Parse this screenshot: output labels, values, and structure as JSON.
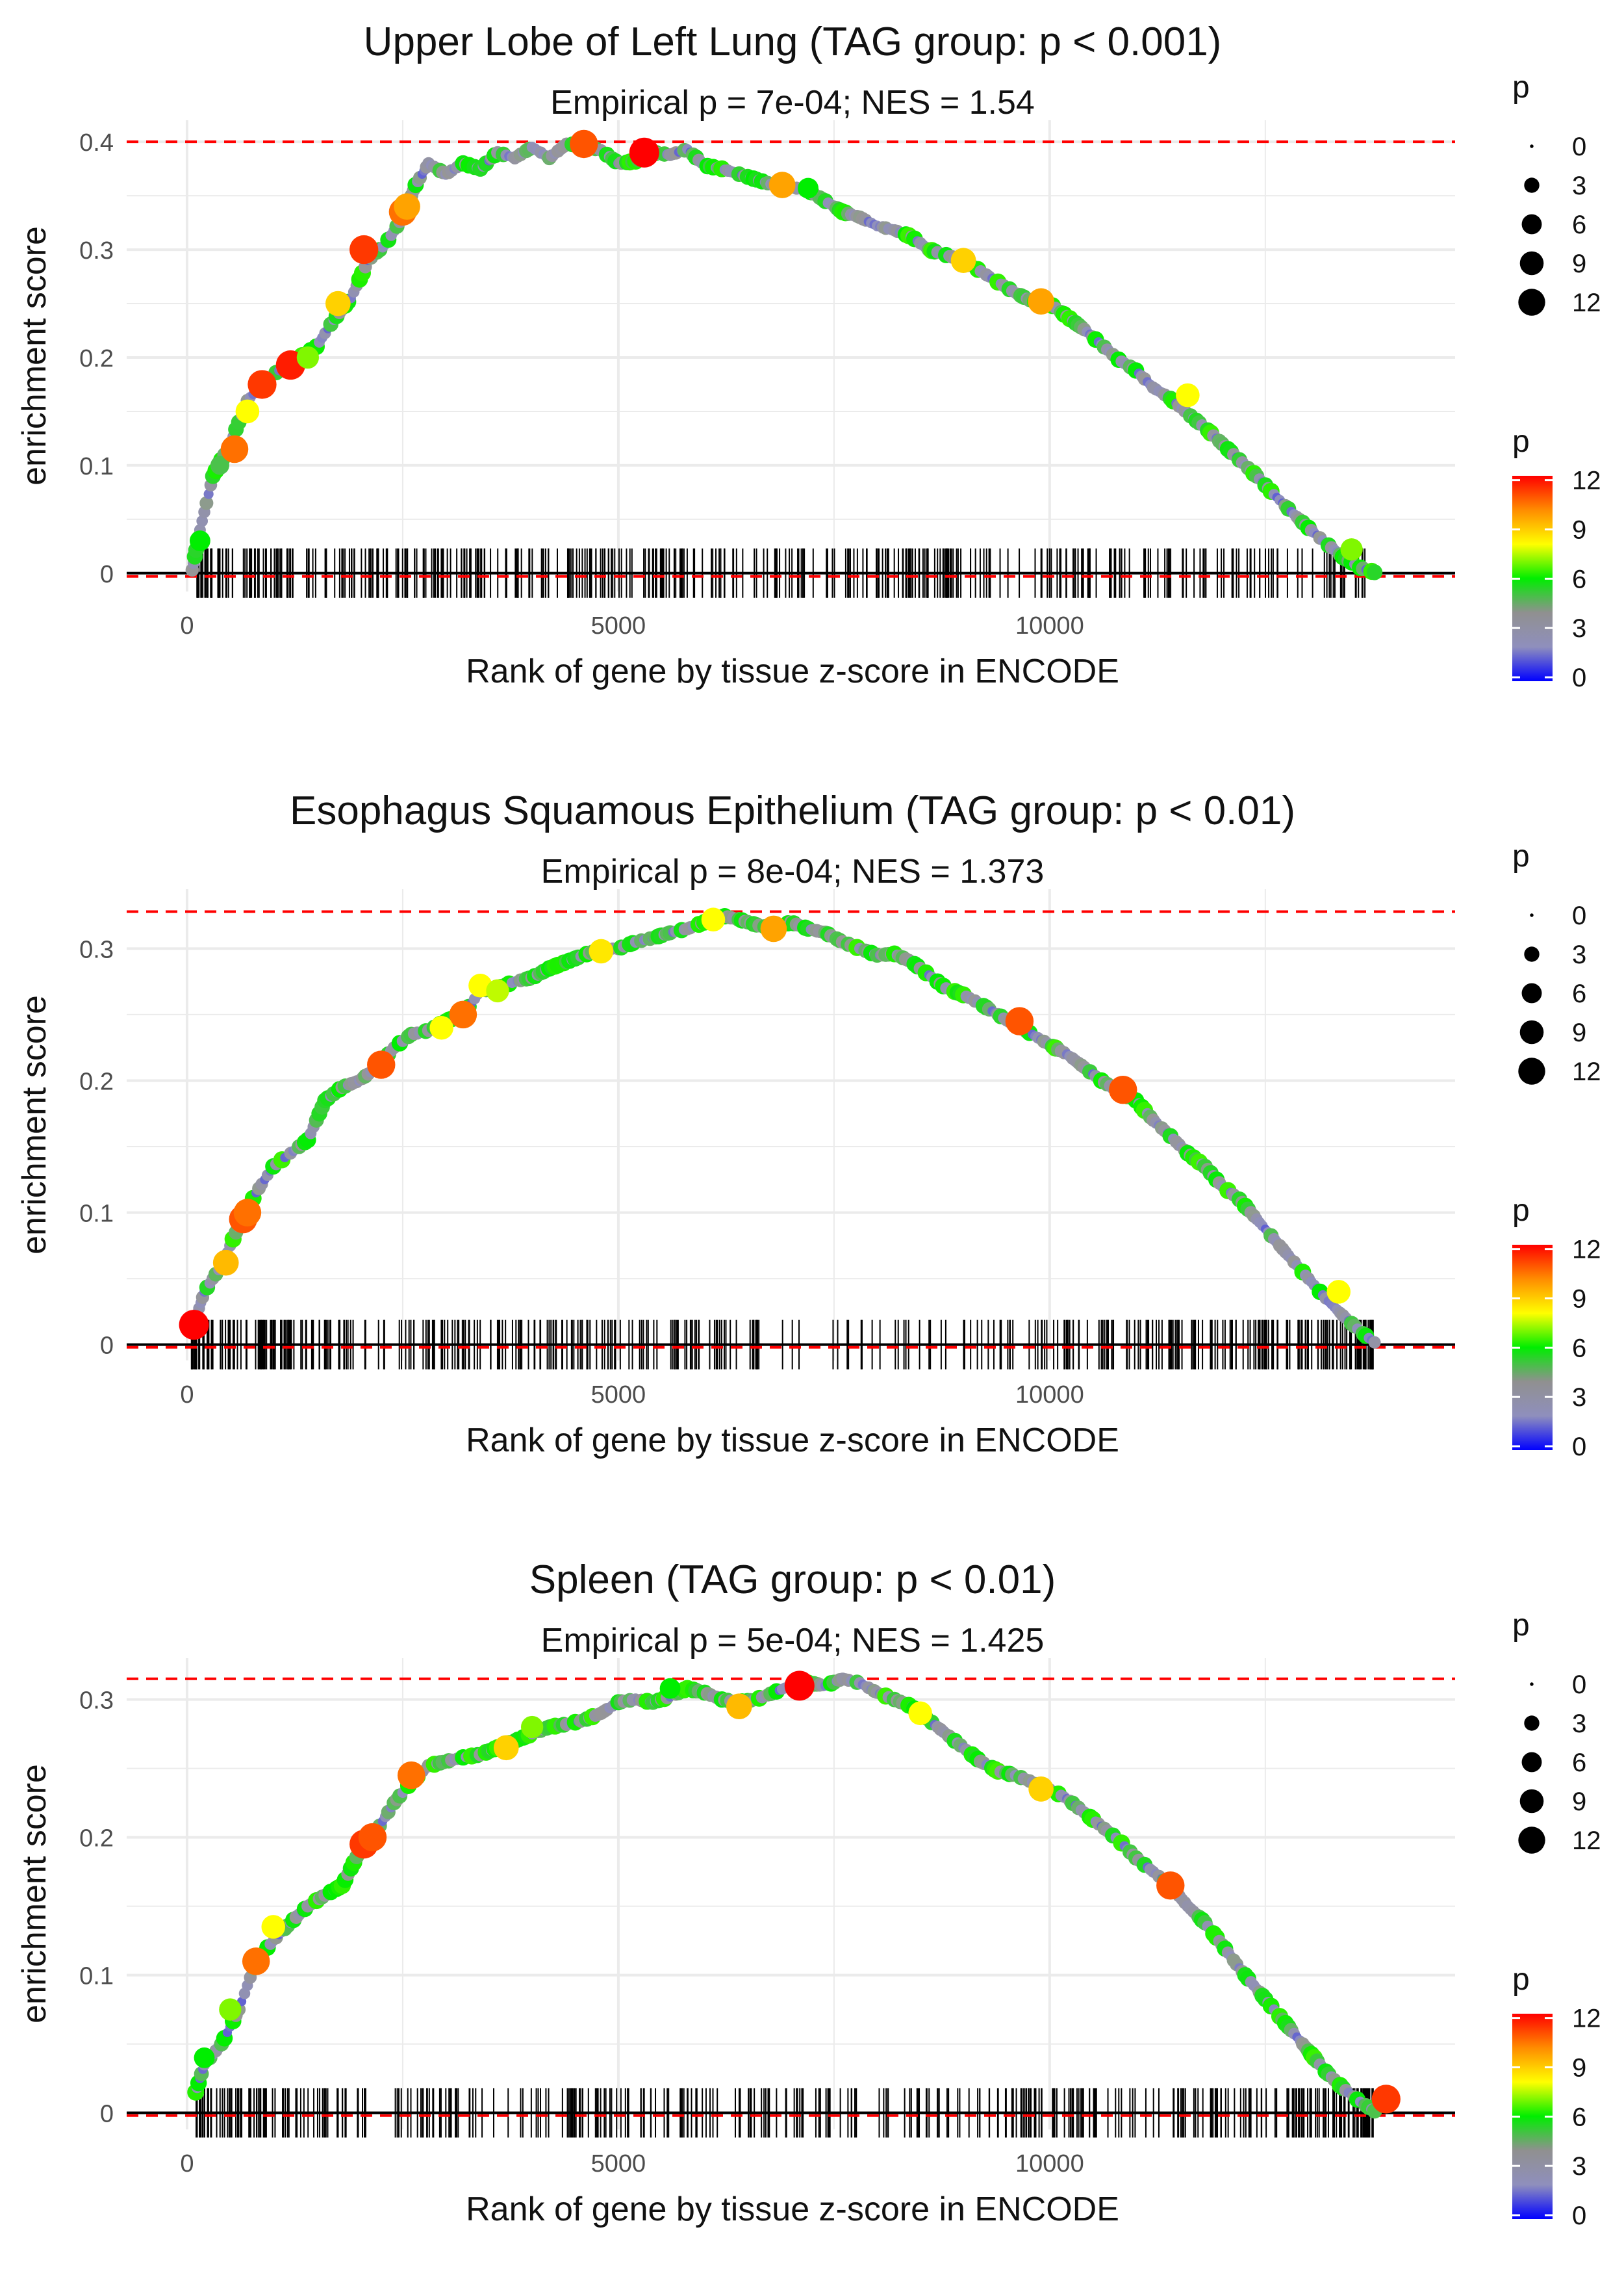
{
  "chart_data": [
    {
      "type": "line",
      "title": "Upper Lobe of Left Lung (TAG group: p < 0.001)",
      "subtitle": "Empirical p = 7e-04; NES = 1.54",
      "xlabel": "Rank of gene by tissue z-score in ENCODE",
      "ylabel": "enrichment score",
      "xlim": [
        -700,
        14700
      ],
      "ylim": [
        -0.017,
        0.42
      ],
      "xticks": [
        0,
        5000,
        10000
      ],
      "yticks": [
        0.0,
        0.1,
        0.2,
        0.3,
        0.4
      ],
      "max_es_line": 0.4,
      "min_es_line": -0.003,
      "curve": {
        "x": [
          60,
          150,
          300,
          500,
          700,
          900,
          1100,
          1300,
          1500,
          1700,
          1900,
          2100,
          2300,
          2500,
          2650,
          2800,
          3000,
          3200,
          3400,
          3600,
          3800,
          4000,
          4200,
          4400,
          4600,
          4800,
          5000,
          5200,
          5400,
          5600,
          5800,
          6000,
          6200,
          6400,
          6600,
          6800,
          7000,
          7200,
          7400,
          7600,
          7800,
          8000,
          8200,
          8400,
          8600,
          8800,
          9000,
          9200,
          9400,
          9600,
          9800,
          10000,
          10200,
          10400,
          10600,
          10800,
          11000,
          11200,
          11400,
          11600,
          11800,
          12000,
          12200,
          12400,
          12600,
          12800,
          13000,
          13200,
          13400,
          13600,
          13800
        ],
        "y": [
          0.003,
          0.04,
          0.09,
          0.12,
          0.16,
          0.178,
          0.19,
          0.2,
          0.21,
          0.235,
          0.255,
          0.29,
          0.305,
          0.33,
          0.36,
          0.38,
          0.37,
          0.38,
          0.375,
          0.39,
          0.385,
          0.395,
          0.385,
          0.398,
          0.397,
          0.392,
          0.38,
          0.382,
          0.39,
          0.388,
          0.393,
          0.378,
          0.375,
          0.37,
          0.365,
          0.36,
          0.358,
          0.355,
          0.345,
          0.335,
          0.33,
          0.322,
          0.318,
          0.312,
          0.3,
          0.295,
          0.29,
          0.28,
          0.27,
          0.26,
          0.252,
          0.25,
          0.238,
          0.226,
          0.212,
          0.198,
          0.188,
          0.172,
          0.162,
          0.148,
          0.135,
          0.12,
          0.105,
          0.09,
          0.073,
          0.057,
          0.042,
          0.028,
          0.015,
          0.005,
          0.0
        ]
      },
      "highlighted_points": [
        {
          "x": 150,
          "y": 0.03,
          "p": 5
        },
        {
          "x": 380,
          "y": 0.1,
          "p": 4
        },
        {
          "x": 550,
          "y": 0.115,
          "p": 10
        },
        {
          "x": 700,
          "y": 0.15,
          "p": 7
        },
        {
          "x": 870,
          "y": 0.175,
          "p": 11
        },
        {
          "x": 1200,
          "y": 0.193,
          "p": 11.5
        },
        {
          "x": 1400,
          "y": 0.2,
          "p": 6
        },
        {
          "x": 1750,
          "y": 0.25,
          "p": 8
        },
        {
          "x": 2050,
          "y": 0.3,
          "p": 11
        },
        {
          "x": 2500,
          "y": 0.335,
          "p": 10
        },
        {
          "x": 2550,
          "y": 0.34,
          "p": 9
        },
        {
          "x": 4600,
          "y": 0.398,
          "p": 10.5
        },
        {
          "x": 5300,
          "y": 0.39,
          "p": 12
        },
        {
          "x": 6900,
          "y": 0.36,
          "p": 9
        },
        {
          "x": 7200,
          "y": 0.357,
          "p": 5
        },
        {
          "x": 9000,
          "y": 0.29,
          "p": 8
        },
        {
          "x": 9900,
          "y": 0.252,
          "p": 9
        },
        {
          "x": 11600,
          "y": 0.165,
          "p": 7
        },
        {
          "x": 13500,
          "y": 0.022,
          "p": 6
        }
      ],
      "rug_x_range": [
        100,
        13700
      ],
      "size_legend": {
        "title": "p",
        "labels": [
          "0",
          "3",
          "6",
          "9",
          "12"
        ]
      },
      "color_legend": {
        "title": "p",
        "labels": [
          "12",
          "9",
          "6",
          "3",
          "0"
        ],
        "colors": [
          "#0000ff",
          "#8f8fbd",
          "#909090",
          "#00ee00",
          "#ffff00",
          "#ff8c00",
          "#ff0000"
        ]
      }
    },
    {
      "type": "line",
      "title": "Esophagus Squamous Epithelium (TAG group: p < 0.01)",
      "subtitle": "Empirical p = 8e-04; NES = 1.373",
      "xlabel": "Rank of gene by tissue z-score in ENCODE",
      "ylabel": "enrichment score",
      "xlim": [
        -700,
        14700
      ],
      "ylim": [
        -0.012,
        0.345
      ],
      "xticks": [
        0,
        5000,
        10000
      ],
      "yticks": [
        0.0,
        0.1,
        0.2,
        0.3
      ],
      "max_es_line": 0.328,
      "min_es_line": -0.002,
      "curve": {
        "x": [
          80,
          200,
          400,
          600,
          800,
          1000,
          1200,
          1400,
          1600,
          1800,
          2000,
          2200,
          2400,
          2600,
          2800,
          3000,
          3200,
          3400,
          3600,
          3800,
          4000,
          4200,
          4400,
          4600,
          4800,
          5000,
          5200,
          5400,
          5600,
          5800,
          6000,
          6200,
          6400,
          6600,
          6800,
          7000,
          7200,
          7400,
          7600,
          7800,
          8000,
          8200,
          8400,
          8600,
          8800,
          9000,
          9200,
          9400,
          9600,
          9800,
          10000,
          10200,
          10400,
          10600,
          10800,
          11000,
          11200,
          11400,
          11600,
          11800,
          12000,
          12200,
          12400,
          12600,
          12800,
          13000,
          13200,
          13400,
          13600,
          13800
        ],
        "y": [
          0.015,
          0.04,
          0.06,
          0.09,
          0.115,
          0.135,
          0.145,
          0.155,
          0.185,
          0.195,
          0.2,
          0.21,
          0.225,
          0.235,
          0.238,
          0.245,
          0.25,
          0.268,
          0.27,
          0.275,
          0.278,
          0.285,
          0.29,
          0.295,
          0.3,
          0.3,
          0.305,
          0.308,
          0.312,
          0.315,
          0.32,
          0.325,
          0.322,
          0.318,
          0.315,
          0.32,
          0.315,
          0.312,
          0.305,
          0.3,
          0.295,
          0.296,
          0.29,
          0.28,
          0.27,
          0.265,
          0.258,
          0.25,
          0.242,
          0.235,
          0.227,
          0.22,
          0.21,
          0.2,
          0.192,
          0.185,
          0.17,
          0.158,
          0.145,
          0.135,
          0.12,
          0.11,
          0.095,
          0.08,
          0.065,
          0.05,
          0.035,
          0.022,
          0.01,
          0.0
        ]
      },
      "highlighted_points": [
        {
          "x": 80,
          "y": 0.015,
          "p": 12
        },
        {
          "x": 450,
          "y": 0.062,
          "p": 8.5
        },
        {
          "x": 650,
          "y": 0.095,
          "p": 10.5
        },
        {
          "x": 700,
          "y": 0.1,
          "p": 10
        },
        {
          "x": 2250,
          "y": 0.212,
          "p": 10.5
        },
        {
          "x": 2950,
          "y": 0.24,
          "p": 7
        },
        {
          "x": 3200,
          "y": 0.25,
          "p": 10
        },
        {
          "x": 3400,
          "y": 0.272,
          "p": 7
        },
        {
          "x": 3600,
          "y": 0.268,
          "p": 6.5
        },
        {
          "x": 4800,
          "y": 0.298,
          "p": 7.5
        },
        {
          "x": 6100,
          "y": 0.322,
          "p": 7
        },
        {
          "x": 6800,
          "y": 0.315,
          "p": 9
        },
        {
          "x": 9650,
          "y": 0.245,
          "p": 10.5
        },
        {
          "x": 10850,
          "y": 0.193,
          "p": 10.5
        },
        {
          "x": 13350,
          "y": 0.04,
          "p": 7
        }
      ],
      "rug_x_range": [
        50,
        13750
      ],
      "size_legend": {
        "title": "p",
        "labels": [
          "0",
          "3",
          "6",
          "9",
          "12"
        ]
      },
      "color_legend": {
        "title": "p",
        "labels": [
          "12",
          "9",
          "6",
          "3",
          "0"
        ],
        "colors": [
          "#0000ff",
          "#8f8fbd",
          "#909090",
          "#00ee00",
          "#ffff00",
          "#ff8c00",
          "#ff0000"
        ]
      }
    },
    {
      "type": "line",
      "title": "Spleen (TAG group: p < 0.01)",
      "subtitle": "Empirical p = 5e-04; NES = 1.425",
      "xlabel": "Rank of gene by tissue z-score in ENCODE",
      "ylabel": "enrichment score",
      "xlim": [
        -700,
        14700
      ],
      "ylim": [
        -0.012,
        0.33
      ],
      "xticks": [
        0,
        5000,
        10000
      ],
      "yticks": [
        0.0,
        0.1,
        0.2,
        0.3
      ],
      "max_es_line": 0.315,
      "min_es_line": -0.002,
      "curve": {
        "x": [
          100,
          200,
          400,
          600,
          800,
          1000,
          1200,
          1400,
          1600,
          1800,
          2000,
          2200,
          2400,
          2600,
          2800,
          3000,
          3200,
          3400,
          3600,
          3800,
          4000,
          4200,
          4400,
          4600,
          4800,
          5000,
          5200,
          5400,
          5600,
          5800,
          6000,
          6200,
          6400,
          6600,
          6800,
          7000,
          7200,
          7400,
          7600,
          7800,
          8000,
          8200,
          8400,
          8600,
          8800,
          9000,
          9200,
          9400,
          9600,
          9800,
          10000,
          10200,
          10400,
          10600,
          10800,
          11000,
          11200,
          11400,
          11600,
          11800,
          12000,
          12200,
          12400,
          12600,
          12800,
          13000,
          13200,
          13400,
          13600,
          13800
        ],
        "y": [
          0.015,
          0.035,
          0.05,
          0.075,
          0.11,
          0.125,
          0.138,
          0.15,
          0.158,
          0.165,
          0.19,
          0.205,
          0.225,
          0.24,
          0.252,
          0.255,
          0.258,
          0.26,
          0.265,
          0.27,
          0.275,
          0.28,
          0.282,
          0.285,
          0.29,
          0.298,
          0.3,
          0.298,
          0.302,
          0.308,
          0.305,
          0.3,
          0.298,
          0.3,
          0.305,
          0.31,
          0.312,
          0.31,
          0.315,
          0.312,
          0.305,
          0.3,
          0.295,
          0.285,
          0.275,
          0.265,
          0.255,
          0.248,
          0.245,
          0.24,
          0.235,
          0.228,
          0.218,
          0.208,
          0.198,
          0.185,
          0.175,
          0.165,
          0.15,
          0.138,
          0.122,
          0.105,
          0.09,
          0.075,
          0.06,
          0.045,
          0.03,
          0.018,
          0.008,
          0.0
        ]
      },
      "highlighted_points": [
        {
          "x": 200,
          "y": 0.04,
          "p": 5
        },
        {
          "x": 500,
          "y": 0.075,
          "p": 6
        },
        {
          "x": 800,
          "y": 0.11,
          "p": 10
        },
        {
          "x": 1000,
          "y": 0.135,
          "p": 7
        },
        {
          "x": 2050,
          "y": 0.195,
          "p": 11
        },
        {
          "x": 2150,
          "y": 0.2,
          "p": 10.5
        },
        {
          "x": 2600,
          "y": 0.245,
          "p": 10
        },
        {
          "x": 3700,
          "y": 0.265,
          "p": 8
        },
        {
          "x": 4000,
          "y": 0.28,
          "p": 6
        },
        {
          "x": 5600,
          "y": 0.308,
          "p": 5
        },
        {
          "x": 6400,
          "y": 0.295,
          "p": 8.5
        },
        {
          "x": 7100,
          "y": 0.31,
          "p": 12
        },
        {
          "x": 8500,
          "y": 0.29,
          "p": 7
        },
        {
          "x": 9900,
          "y": 0.235,
          "p": 8
        },
        {
          "x": 11400,
          "y": 0.165,
          "p": 10.5
        },
        {
          "x": 13900,
          "y": 0.01,
          "p": 11
        }
      ],
      "rug_x_range": [
        100,
        13750
      ],
      "size_legend": {
        "title": "p",
        "labels": [
          "0",
          "3",
          "6",
          "9",
          "12"
        ]
      },
      "color_legend": {
        "title": "p",
        "labels": [
          "12",
          "9",
          "6",
          "3",
          "0"
        ],
        "colors": [
          "#0000ff",
          "#8f8fbd",
          "#909090",
          "#00ee00",
          "#ffff00",
          "#ff8c00",
          "#ff0000"
        ]
      }
    }
  ]
}
